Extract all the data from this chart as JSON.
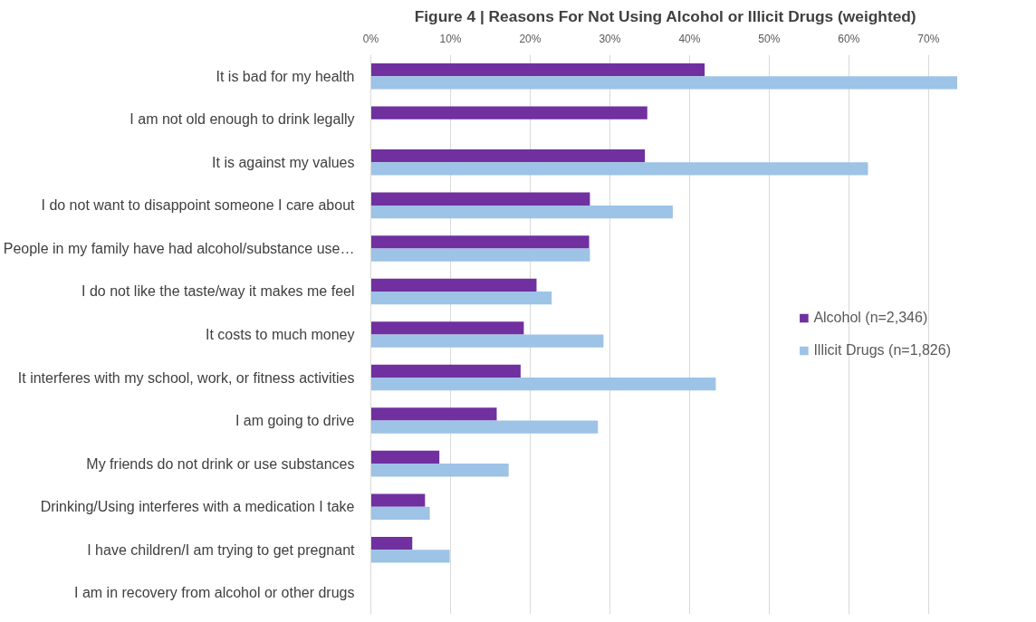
{
  "chart_data": {
    "type": "bar",
    "orientation": "horizontal",
    "title": "Figure 4 | Reasons For Not Using Alcohol or Illicit Drugs (weighted)",
    "categories": [
      "It is bad for my health",
      "I am not old enough to drink legally",
      "It is against my values",
      "I do not want to disappoint someone I care about",
      "People in my family have had alcohol/substance use…",
      "I do not like the taste/way it makes me feel",
      "It costs to much money",
      "It interferes with my school, work, or fitness activities",
      "I am going to drive",
      "My friends do not drink or use substances",
      "Drinking/Using interferes with a medication I take",
      "I have children/I am trying to get pregnant",
      "I am in recovery from alcohol or other drugs"
    ],
    "series": [
      {
        "name": "Alcohol (n=2,346)",
        "color": "#7030a0",
        "values": [
          41.9,
          34.7,
          34.4,
          27.5,
          27.4,
          20.8,
          19.2,
          18.8,
          15.8,
          8.6,
          6.8,
          5.2,
          0
        ]
      },
      {
        "name": "Illicit Drugs (n=1,826)",
        "color": "#9dc3e6",
        "values": [
          73.6,
          null,
          62.4,
          37.9,
          27.5,
          22.7,
          29.2,
          43.3,
          28.5,
          17.3,
          7.4,
          9.9,
          0
        ]
      }
    ],
    "xlim": [
      0,
      74
    ],
    "xticks": [
      {
        "value": 0,
        "label": "0%"
      },
      {
        "value": 10,
        "label": "10%"
      },
      {
        "value": 20,
        "label": "20%"
      },
      {
        "value": 30,
        "label": "30%"
      },
      {
        "value": 40,
        "label": "40%"
      },
      {
        "value": 50,
        "label": "50%"
      },
      {
        "value": 60,
        "label": "60%"
      },
      {
        "value": 70,
        "label": "70%"
      }
    ],
    "grid": "x",
    "legend": "right"
  }
}
